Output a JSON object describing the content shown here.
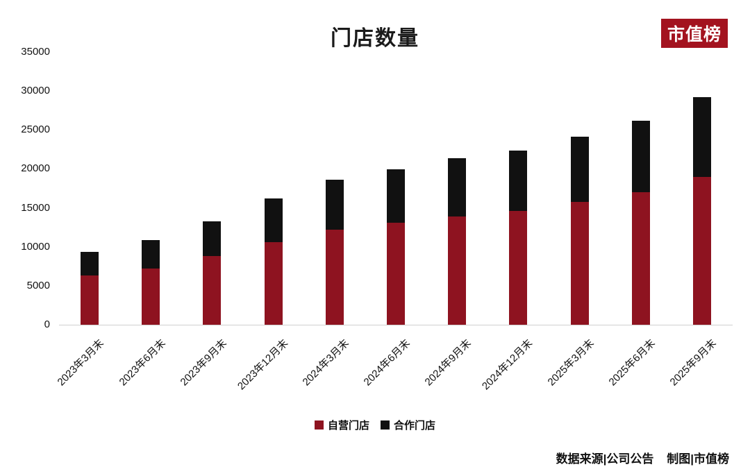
{
  "page": {
    "title": "门店数量",
    "logo": "市值榜",
    "footer": "数据来源|公司公告    制图|市值榜"
  },
  "colors": {
    "self_operated": "#8e1320",
    "partner": "#111111",
    "logo_bg": "#a3131f"
  },
  "chart_data": {
    "type": "bar",
    "stacked": true,
    "title": "门店数量",
    "categories": [
      "2023年3月末",
      "2023年6月末",
      "2023年9月末",
      "2023年12月末",
      "2024年3月末",
      "2024年6月末",
      "2024年9月末",
      "2024年12月末",
      "2025年3月末",
      "2025年6月末",
      "2025年9月末"
    ],
    "series": [
      {
        "name": "自营门店",
        "color": "#8e1320",
        "values": [
          6310,
          7188,
          8807,
          10598,
          12199,
          13056,
          13936,
          14591,
          15728,
          16968,
          18982
        ]
      },
      {
        "name": "合作门店",
        "color": "#111111",
        "values": [
          3041,
          3648,
          4466,
          5620,
          6391,
          6905,
          7407,
          7749,
          8369,
          9238,
          10232
        ]
      }
    ],
    "xlabel": "",
    "ylabel": "",
    "ylim": [
      0,
      35000
    ],
    "ytick_step": 5000,
    "grid": false,
    "legend_position": "bottom"
  }
}
